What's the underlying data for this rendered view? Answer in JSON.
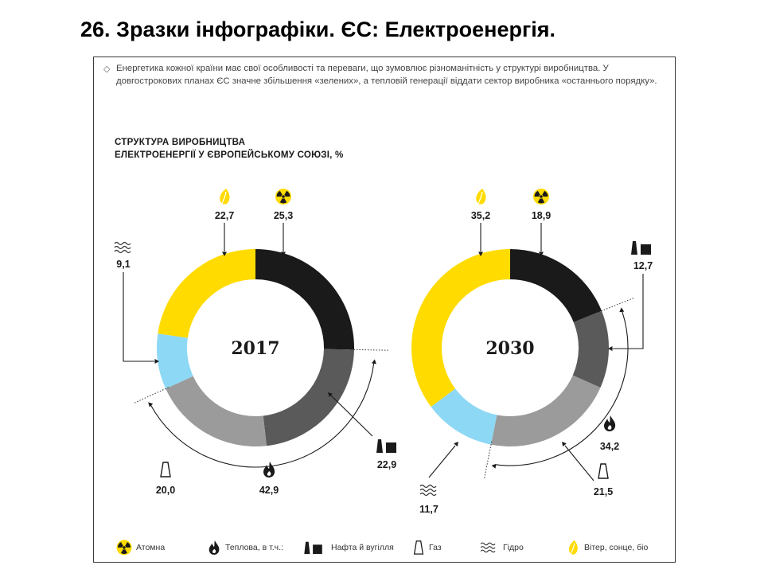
{
  "slide": {
    "title": "26. Зразки інфографіки. ЄС: Електроенергія."
  },
  "intro": "Енергетика кожної країни має свої особливості та переваги, що зумовлює різноманітність у структурі виробництва. У довгострокових планах ЄС значне збільшення «зелених», а тепловій генерації віддати сектор виробника «останнього порядку».",
  "chart_title_line1": "СТРУКТУРА ВИРОБНИЦТВА",
  "chart_title_line2": "ЕЛЕКТРОЕНЕРГІЇ У ЄВРОПЕЙСЬКОМУ СОЮЗІ, %",
  "colors": {
    "nuclear": "#1a1a1a",
    "coal_oil": "#5a5a5a",
    "gas": "#9b9b9b",
    "hydro": "#8dd8f5",
    "renewables": "#ffdb00"
  },
  "chart_data": [
    {
      "type": "donut",
      "center_label": "2017",
      "segments": [
        {
          "key": "nuclear",
          "value": 25.3,
          "label": "25,3"
        },
        {
          "key": "coal_oil",
          "value": 22.9,
          "label": "22,9"
        },
        {
          "key": "gas",
          "value": 20.0,
          "label": "20,0"
        },
        {
          "key": "hydro",
          "value": 9.1,
          "label": "9,1"
        },
        {
          "key": "renewables",
          "value": 22.7,
          "label": "22,7"
        }
      ],
      "thermal_total": {
        "value": 42.9,
        "label": "42,9"
      }
    },
    {
      "type": "donut",
      "center_label": "2030",
      "segments": [
        {
          "key": "nuclear",
          "value": 18.9,
          "label": "18,9"
        },
        {
          "key": "coal_oil",
          "value": 12.7,
          "label": "12,7"
        },
        {
          "key": "gas",
          "value": 21.5,
          "label": "21,5"
        },
        {
          "key": "hydro",
          "value": 11.7,
          "label": "11,7"
        },
        {
          "key": "renewables",
          "value": 35.2,
          "label": "35,2"
        }
      ],
      "thermal_total": {
        "value": 34.2,
        "label": "34,2"
      }
    }
  ],
  "legend": [
    {
      "key": "nuclear",
      "label": "Атомна",
      "icon": "radiation-icon"
    },
    {
      "key": "thermal",
      "label": "Теплова, в т.ч.:",
      "icon": "flame-icon"
    },
    {
      "key": "coal_oil",
      "label": "Нафта й вугілля",
      "icon": "coal-oil-icon"
    },
    {
      "key": "gas",
      "label": "Газ",
      "icon": "gas-tower-icon"
    },
    {
      "key": "hydro",
      "label": "Гідро",
      "icon": "waves-icon"
    },
    {
      "key": "renewables",
      "label": "Вітер, сонце, біо",
      "icon": "leaf-icon"
    }
  ]
}
